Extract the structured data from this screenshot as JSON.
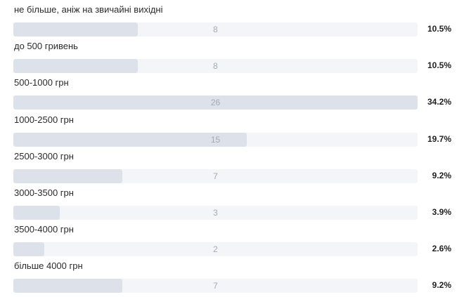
{
  "chart_data": {
    "type": "bar",
    "orientation": "horizontal",
    "categories": [
      "не більше, аніж на звичайні вихідні",
      "до 500 гривень",
      "500-1000 грн",
      "1000-2500 грн",
      "2500-3000 грн",
      "3000-3500 грн",
      "3500-4000 грн",
      "більше 4000 грн"
    ],
    "values": [
      8,
      8,
      26,
      15,
      7,
      3,
      2,
      7
    ],
    "percentages": [
      "10.5%",
      "10.5%",
      "34.2%",
      "19.7%",
      "9.2%",
      "3.9%",
      "2.6%",
      "9.2%"
    ],
    "xlim": [
      0,
      26
    ],
    "colors": {
      "bar_fill": "#dde2ea",
      "track": "#f4f5f8",
      "count_text": "#a3a9b3",
      "label_text": "#2b2b2b"
    }
  }
}
